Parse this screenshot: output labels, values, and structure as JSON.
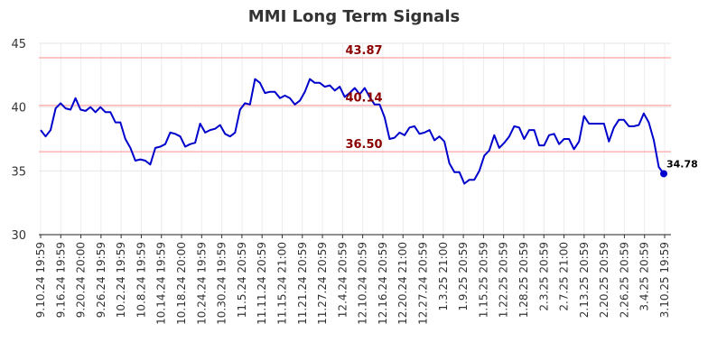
{
  "chart_data": {
    "type": "line",
    "title": "MMI Long Term Signals",
    "xlabel": "",
    "ylabel": "",
    "ylim": [
      30,
      45
    ],
    "yticks": [
      30,
      35,
      40,
      45
    ],
    "grid": true,
    "xtick_labels": [
      "9.10.24 19:59",
      "9.16.24 19:59",
      "9.20.24 20:00",
      "9.26.24 19:59",
      "10.2.24 19:59",
      "10.8.24 19:59",
      "10.14.24 19:59",
      "10.18.24 20:00",
      "10.24.24 19:59",
      "10.30.24 19:59",
      "11.5.24 20:59",
      "11.11.24 20:59",
      "11.15.24 21:00",
      "11.21.24 20:59",
      "11.27.24 20:59",
      "12.4.24 20:59",
      "12.10.24 20:59",
      "12.16.24 20:59",
      "12.20.24 21:00",
      "12.27.24 20:59",
      "1.3.25 21:00",
      "1.9.25 20:59",
      "1.15.25 20:59",
      "1.22.25 20:59",
      "1.28.25 20:59",
      "2.3.25 20:59",
      "2.7.25 21:00",
      "2.13.25 20:59",
      "2.20.25 20:59",
      "2.26.25 20:59",
      "3.4.25 20:59",
      "3.10.25 19:59"
    ],
    "signal_lines": [
      {
        "value": 43.87,
        "label": "43.87",
        "color": "#ffb3b3"
      },
      {
        "value": 40.14,
        "label": "40.14",
        "color": "#ffb3b3"
      },
      {
        "value": 36.5,
        "label": "36.50",
        "color": "#ffb3b3"
      }
    ],
    "signal_label_color": "#8b0000",
    "series": [
      {
        "color": "#0000cc",
        "values": [
          38.2,
          37.7,
          38.2,
          39.9,
          40.3,
          39.9,
          39.8,
          40.7,
          39.8,
          39.7,
          40.0,
          39.6,
          40.0,
          39.6,
          39.6,
          38.8,
          38.8,
          37.5,
          36.8,
          35.8,
          35.9,
          35.8,
          35.5,
          36.8,
          36.9,
          37.1,
          38.0,
          37.9,
          37.7,
          36.9,
          37.1,
          37.2,
          38.7,
          38.0,
          38.2,
          38.3,
          38.6,
          37.9,
          37.7,
          38.0,
          39.8,
          40.3,
          40.2,
          42.2,
          41.9,
          41.1,
          41.2,
          41.2,
          40.7,
          40.9,
          40.7,
          40.2,
          40.5,
          41.2,
          42.2,
          41.9,
          41.9,
          41.6,
          41.7,
          41.3,
          41.6,
          40.8,
          41.1,
          41.5,
          41.0,
          41.5,
          40.8,
          40.2,
          40.2,
          39.2,
          37.5,
          37.6,
          38.0,
          37.8,
          38.4,
          38.5,
          37.9,
          38.0,
          38.2,
          37.4,
          37.7,
          37.3,
          35.6,
          34.9,
          34.9,
          34.0,
          34.3,
          34.3,
          35.0,
          36.2,
          36.6,
          37.8,
          36.8,
          37.2,
          37.7,
          38.5,
          38.4,
          37.5,
          38.2,
          38.2,
          37.0,
          37.0,
          37.8,
          37.9,
          37.1,
          37.5,
          37.5,
          36.7,
          37.3,
          39.3,
          38.7,
          38.7,
          38.7,
          38.7,
          37.3,
          38.4,
          39.0,
          39.0,
          38.5,
          38.5,
          38.6,
          39.5,
          38.8,
          37.4,
          35.3,
          34.78
        ]
      }
    ],
    "last_value_label": "34.78"
  }
}
